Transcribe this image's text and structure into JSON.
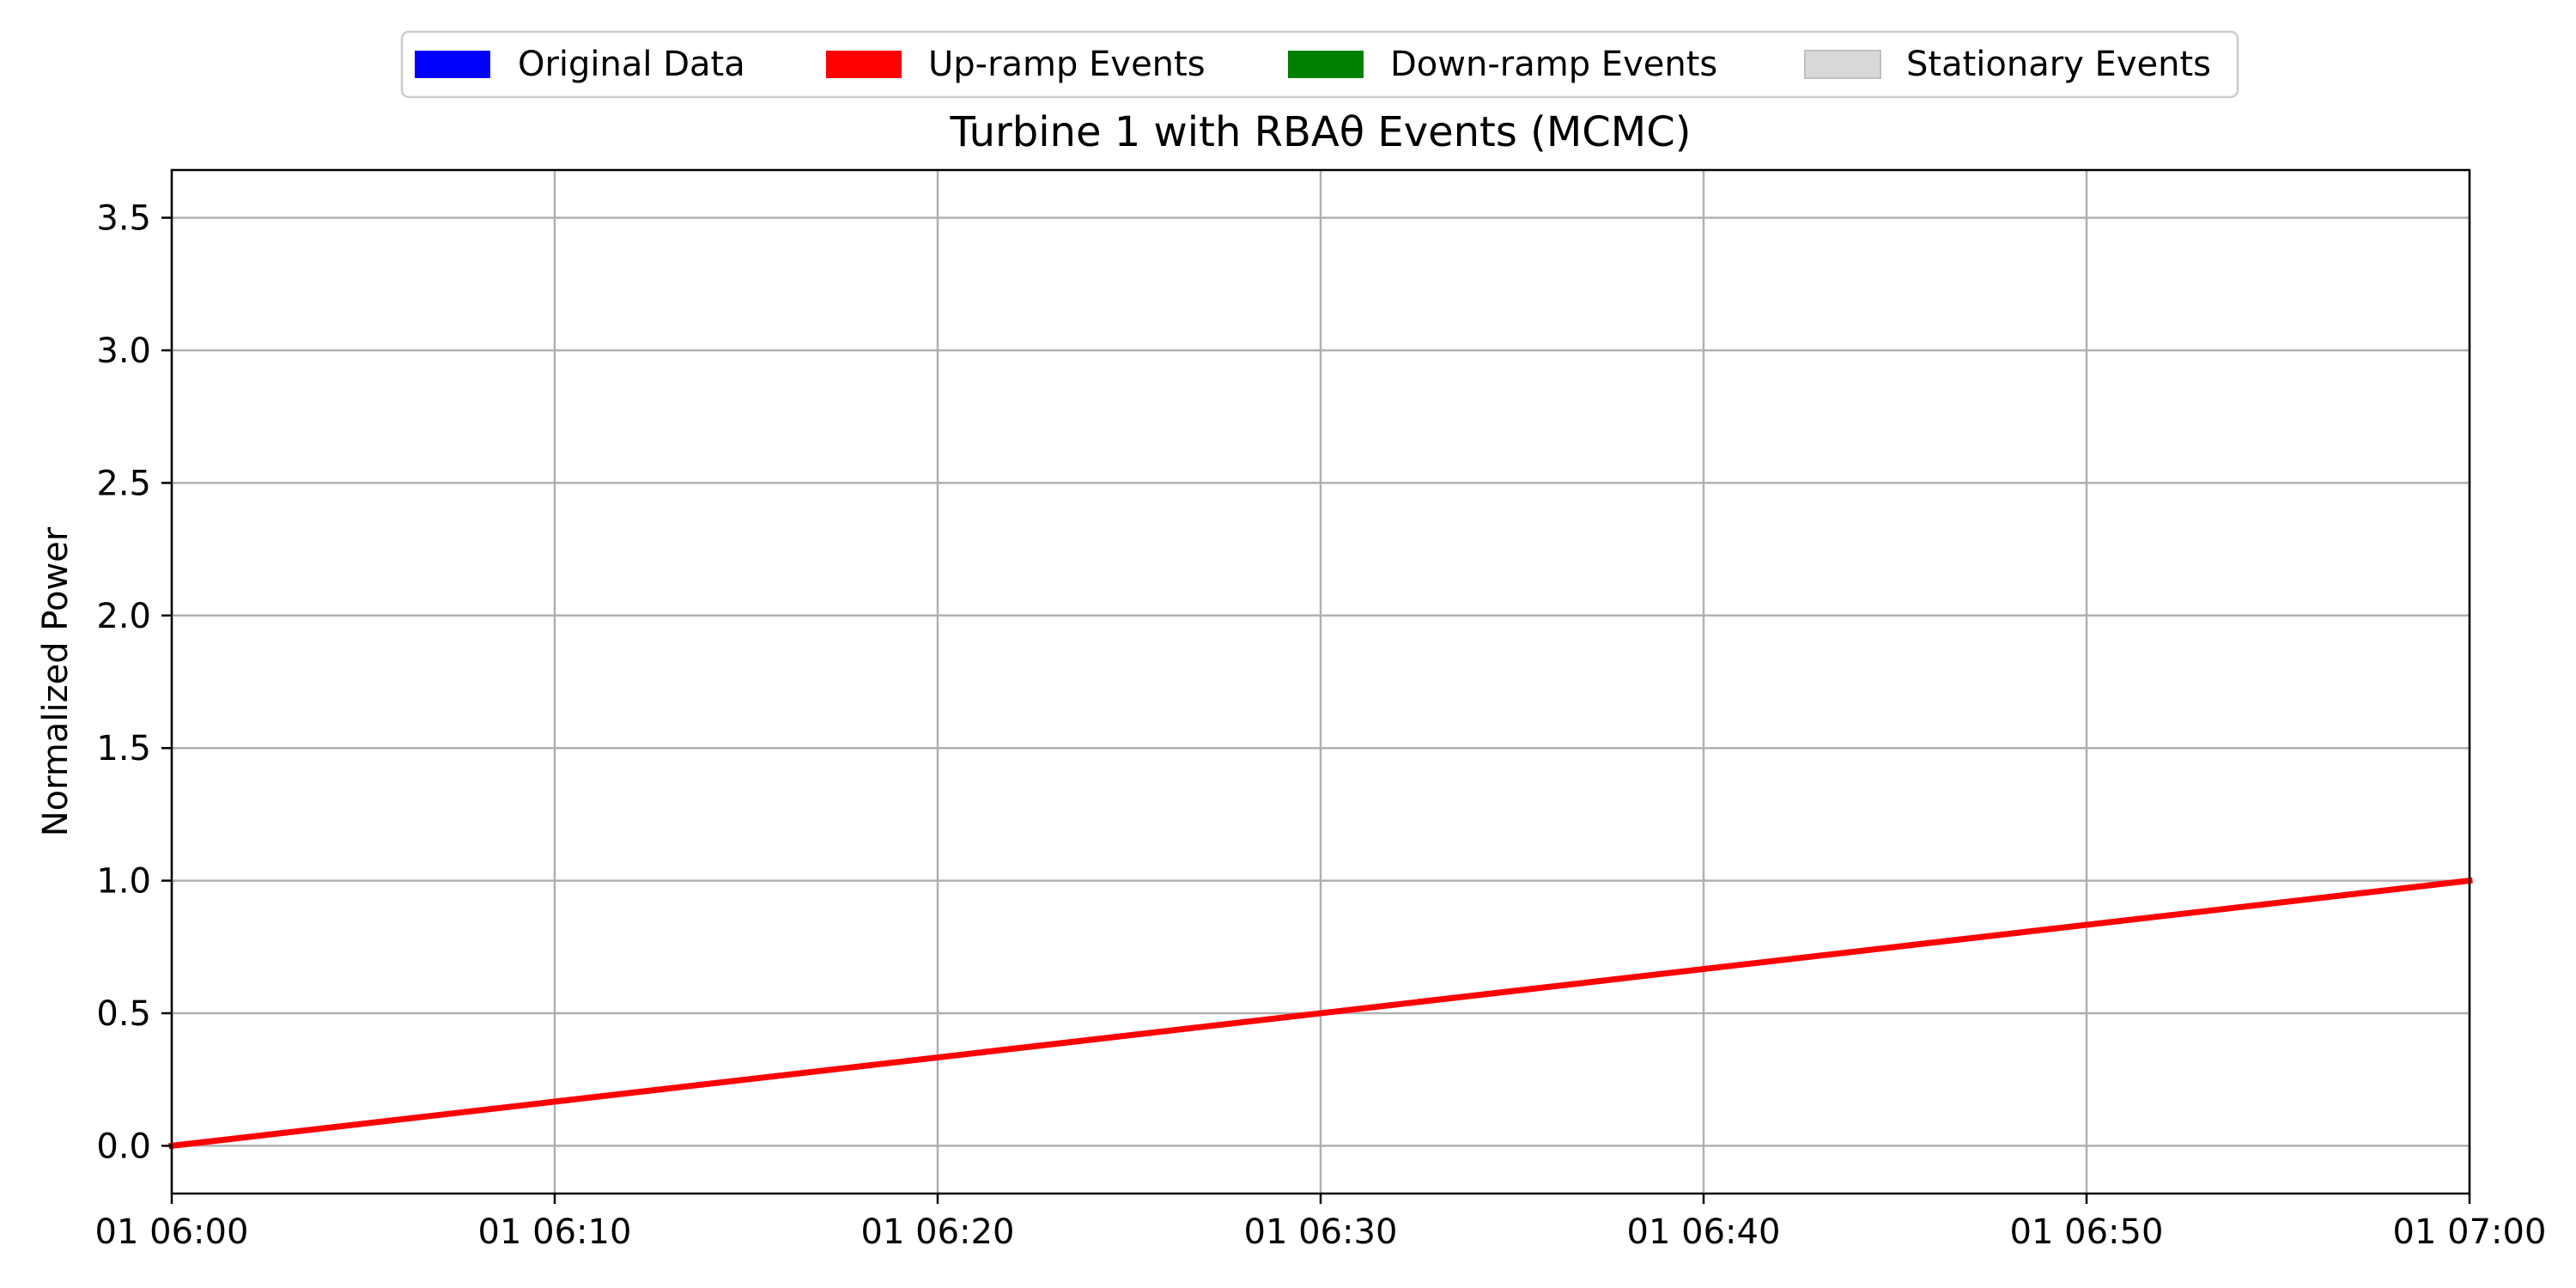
{
  "chart_data": {
    "type": "line",
    "title": "Turbine 1 with RBAθ Events (MCMC)",
    "xlabel": "",
    "ylabel": "Normalized Power",
    "x_ticks": [
      "01 06:00",
      "01 06:10",
      "01 06:20",
      "01 06:30",
      "01 06:40",
      "01 06:50",
      "01 07:00"
    ],
    "x_range": [
      "01 06:00",
      "01 07:00"
    ],
    "y_ticks": [
      "0.0",
      "0.5",
      "1.0",
      "1.5",
      "2.0",
      "2.5",
      "3.0",
      "3.5"
    ],
    "ylim": [
      -0.18,
      3.68
    ],
    "grid": true,
    "legend_position": "top-center",
    "legend": [
      {
        "label": "Original Data",
        "color": "#0000ff"
      },
      {
        "label": "Up-ramp Events",
        "color": "#ff0000"
      },
      {
        "label": "Down-ramp Events",
        "color": "#008000"
      },
      {
        "label": "Stationary Events",
        "color": "#d9d9d9"
      }
    ],
    "series": [
      {
        "color": "#ff0000",
        "x": [
          "01 06:00",
          "01 07:00"
        ],
        "y": [
          0.0,
          1.0
        ]
      }
    ]
  }
}
